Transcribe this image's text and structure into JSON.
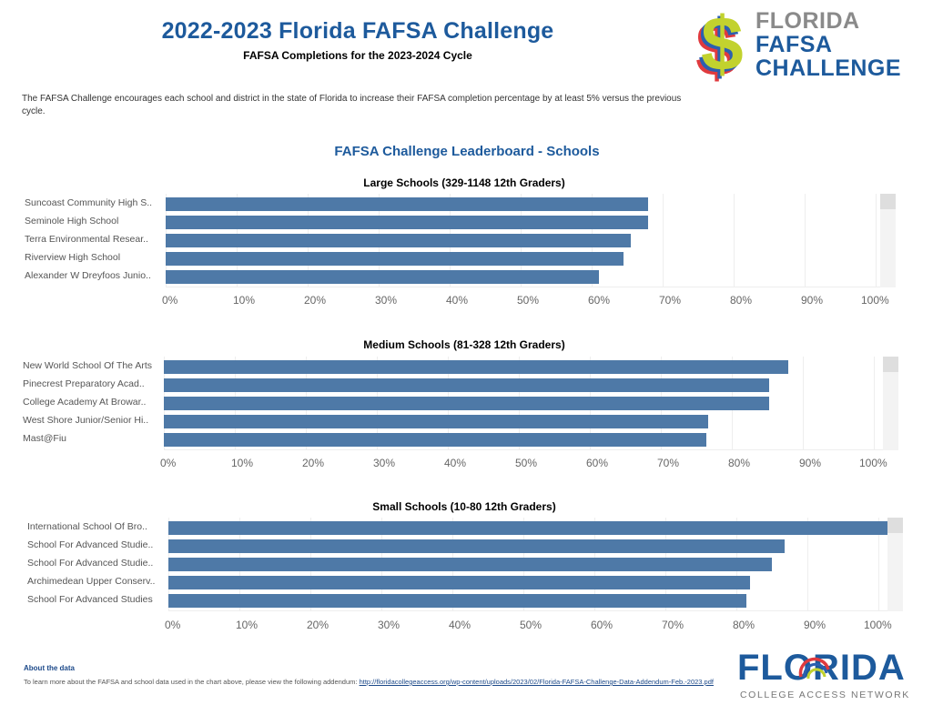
{
  "header": {
    "title": "2022-2023 Florida FAFSA Challenge",
    "subtitle": "FAFSA Completions for the 2023-2024 Cycle",
    "logo_line1": "FLORIDA",
    "logo_line2": "FAFSA",
    "logo_line3": "CHALLENGE",
    "logo_symbol": "$"
  },
  "intro": "The FAFSA Challenge encourages each school and district in the state of Florida to increase their FAFSA completion percentage by at least 5% versus the previous cycle.",
  "leaderboard_title": "FAFSA Challenge Leaderboard - Schools",
  "colors": {
    "bar": "#4e79a7",
    "title": "#1d5a9c",
    "grid": "#eeeeee"
  },
  "chart_data": [
    {
      "type": "bar",
      "orientation": "horizontal",
      "title": "Large Schools (329-1148 12th Graders)",
      "categories": [
        "Suncoast Community High S..",
        "Seminole High School",
        "Terra Environmental Resear..",
        "Riverview High School",
        "Alexander W Dreyfoos Junio.."
      ],
      "values": [
        68,
        68,
        65.5,
        64.5,
        61
      ],
      "xlabel": "",
      "ylabel": "",
      "xlim": [
        0,
        100
      ],
      "ticks": [
        "0%",
        "10%",
        "20%",
        "30%",
        "40%",
        "50%",
        "60%",
        "70%",
        "80%",
        "90%",
        "100%"
      ],
      "grid": true
    },
    {
      "type": "bar",
      "orientation": "horizontal",
      "title": "Medium Schools (81-328 12th Graders)",
      "categories": [
        "New World School Of The Arts",
        "Pinecrest Preparatory Acad..",
        "College Academy At Browar..",
        "West Shore Junior/Senior Hi..",
        "Mast@Fiu"
      ],
      "values": [
        88,
        85.3,
        85.3,
        76.7,
        76.4
      ],
      "xlabel": "",
      "ylabel": "",
      "xlim": [
        0,
        100
      ],
      "ticks": [
        "0%",
        "10%",
        "20%",
        "30%",
        "40%",
        "50%",
        "60%",
        "70%",
        "80%",
        "90%",
        "100%"
      ],
      "grid": true
    },
    {
      "type": "bar",
      "orientation": "horizontal",
      "title": "Small Schools (10-80 12th Graders)",
      "categories": [
        "International School Of Bro..",
        "School For Advanced Studie..",
        "School For Advanced Studie..",
        "Archimedean Upper Conserv..",
        "School For Advanced Studies"
      ],
      "values": [
        100,
        86.8,
        85,
        81.9,
        81.4
      ],
      "xlabel": "",
      "ylabel": "",
      "xlim": [
        0,
        100
      ],
      "ticks": [
        "0%",
        "10%",
        "20%",
        "30%",
        "40%",
        "50%",
        "60%",
        "70%",
        "80%",
        "90%",
        "100%"
      ],
      "grid": true
    }
  ],
  "footer": {
    "about_title": "About the data",
    "about_text": "To learn more about the FAFSA and school data used in the chart above, please view the following addendum: ",
    "link": "http://floridacollegeaccess.org/wp-content/uploads/2023/02/Florida-FAFSA-Challenge-Data-Addendum-Feb.-2023.pdf",
    "logo_big": "FLORIDA",
    "logo_small": "COLLEGE ACCESS NETWORK"
  }
}
